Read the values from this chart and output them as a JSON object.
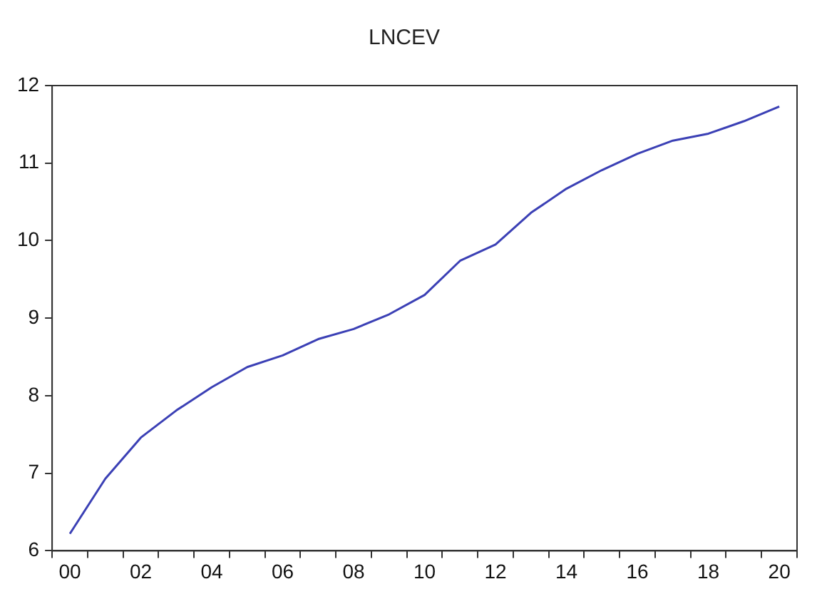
{
  "chart_data": {
    "type": "line",
    "title": "LNCEV",
    "categories": [
      "00",
      null,
      "02",
      null,
      "04",
      null,
      "06",
      null,
      "08",
      null,
      "10",
      null,
      "12",
      null,
      "14",
      null,
      "16",
      null,
      "18",
      null,
      "20"
    ],
    "series": [
      {
        "color": "#3b40b5",
        "values": [
          6.22,
          6.93,
          7.46,
          7.81,
          8.11,
          8.37,
          8.52,
          8.73,
          8.86,
          9.05,
          9.3,
          9.74,
          9.95,
          10.36,
          10.67,
          10.91,
          11.12,
          11.29,
          11.38,
          11.54,
          11.73
        ]
      }
    ],
    "ylim": [
      6,
      12
    ],
    "yticks": [
      6,
      7,
      8,
      9,
      10,
      11,
      12
    ],
    "grid": false,
    "legend": false,
    "marker": "none",
    "line_style": "solid"
  }
}
